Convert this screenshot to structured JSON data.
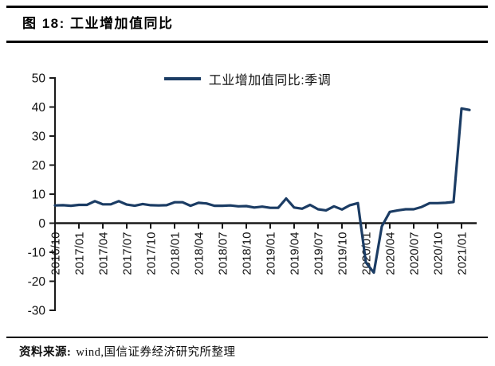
{
  "figure": {
    "title": "图 18: 工业增加值同比",
    "source_label": "资料来源:",
    "source_text": "wind,国信证券经济研究所整理"
  },
  "chart_data": {
    "type": "line",
    "title": "图 18: 工业增加值同比",
    "legend": [
      "工业增加值同比:季调"
    ],
    "legend_position": "top-center",
    "grid": false,
    "line_color": "#1b3c64",
    "axis_color": "#1a1a1a",
    "ylim": [
      -30,
      50
    ],
    "y_ticks": [
      50,
      40,
      30,
      20,
      10,
      0,
      -10,
      -20,
      -30
    ],
    "x_tick_labels": [
      "2016/10",
      "2017/01",
      "2017/04",
      "2017/07",
      "2017/10",
      "2018/01",
      "2018/04",
      "2018/07",
      "2018/10",
      "2019/01",
      "2019/04",
      "2019/07",
      "2019/10",
      "2020/01",
      "2020/04",
      "2020/07",
      "2020/10",
      "2021/01"
    ],
    "x": [
      "2016/10",
      "2016/11",
      "2016/12",
      "2017/01",
      "2017/02",
      "2017/03",
      "2017/04",
      "2017/05",
      "2017/06",
      "2017/07",
      "2017/08",
      "2017/09",
      "2017/10",
      "2017/11",
      "2017/12",
      "2018/01",
      "2018/02",
      "2018/03",
      "2018/04",
      "2018/05",
      "2018/06",
      "2018/07",
      "2018/08",
      "2018/09",
      "2018/10",
      "2018/11",
      "2018/12",
      "2019/01",
      "2019/02",
      "2019/03",
      "2019/04",
      "2019/05",
      "2019/06",
      "2019/07",
      "2019/08",
      "2019/09",
      "2019/10",
      "2019/11",
      "2019/12",
      "2020/01",
      "2020/02",
      "2020/03",
      "2020/04",
      "2020/05",
      "2020/06",
      "2020/07",
      "2020/08",
      "2020/09",
      "2020/10",
      "2020/11",
      "2020/12",
      "2021/01",
      "2021/02"
    ],
    "series": [
      {
        "name": "工业增加值同比:季调",
        "values": [
          6.1,
          6.2,
          6.0,
          6.3,
          6.3,
          7.6,
          6.5,
          6.5,
          7.6,
          6.4,
          6.0,
          6.6,
          6.2,
          6.1,
          6.2,
          7.2,
          7.2,
          6.0,
          7.0,
          6.8,
          6.0,
          6.0,
          6.1,
          5.8,
          5.9,
          5.4,
          5.7,
          5.3,
          5.3,
          8.5,
          5.4,
          5.0,
          6.3,
          4.8,
          4.4,
          5.8,
          4.7,
          6.2,
          6.9,
          -13.5,
          -17.0,
          -1.1,
          3.9,
          4.4,
          4.8,
          4.8,
          5.6,
          6.9,
          6.9,
          7.0,
          7.3,
          39.5,
          39.0
        ]
      }
    ]
  }
}
